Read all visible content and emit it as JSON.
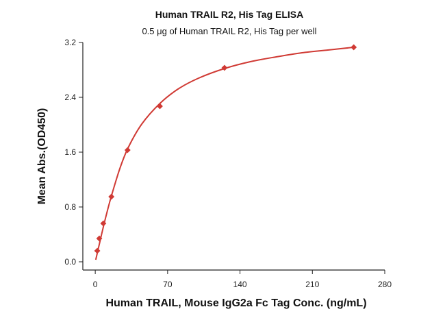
{
  "chart_data": {
    "type": "scatter",
    "title": "Human TRAIL R2, His Tag ELISA",
    "subtitle": "0.5 μg of Human TRAIL R2, His Tag per well",
    "xlabel": "Human TRAIL, Mouse IgG2a Fc Tag Conc. (ng/mL)",
    "ylabel": "Mean Abs.(OD450)",
    "xlim": [
      -12,
      280
    ],
    "ylim": [
      -0.12,
      3.2
    ],
    "x_ticks": [
      0,
      70,
      140,
      210,
      280
    ],
    "y_ticks": [
      0.0,
      0.8,
      1.6,
      2.4,
      3.2
    ],
    "x_tick_labels": [
      "0",
      "70",
      "140",
      "210",
      "280"
    ],
    "y_tick_labels": [
      "0.0",
      "0.8",
      "1.6",
      "2.4",
      "3.2"
    ],
    "grid": false,
    "colors": {
      "series": "#d03a34",
      "axis": "#222222"
    },
    "series": [
      {
        "marker": "diamond",
        "x": [
          1.95,
          3.9,
          7.8,
          15.6,
          31.25,
          62.5,
          125,
          250
        ],
        "y": [
          0.16,
          0.34,
          0.56,
          0.95,
          1.63,
          2.27,
          2.83,
          3.13
        ]
      }
    ],
    "fit_curve": {
      "present": true,
      "samples": [
        {
          "x": 0.5,
          "y": 0.03
        },
        {
          "x": 2,
          "y": 0.13
        },
        {
          "x": 4,
          "y": 0.26
        },
        {
          "x": 8,
          "y": 0.52
        },
        {
          "x": 12,
          "y": 0.76
        },
        {
          "x": 16,
          "y": 0.98
        },
        {
          "x": 24,
          "y": 1.37
        },
        {
          "x": 32,
          "y": 1.67
        },
        {
          "x": 45,
          "y": 2.01
        },
        {
          "x": 62.5,
          "y": 2.31
        },
        {
          "x": 80,
          "y": 2.52
        },
        {
          "x": 100,
          "y": 2.68
        },
        {
          "x": 125,
          "y": 2.82
        },
        {
          "x": 150,
          "y": 2.92
        },
        {
          "x": 175,
          "y": 2.99
        },
        {
          "x": 200,
          "y": 3.05
        },
        {
          "x": 225,
          "y": 3.09
        },
        {
          "x": 250,
          "y": 3.13
        }
      ]
    }
  }
}
